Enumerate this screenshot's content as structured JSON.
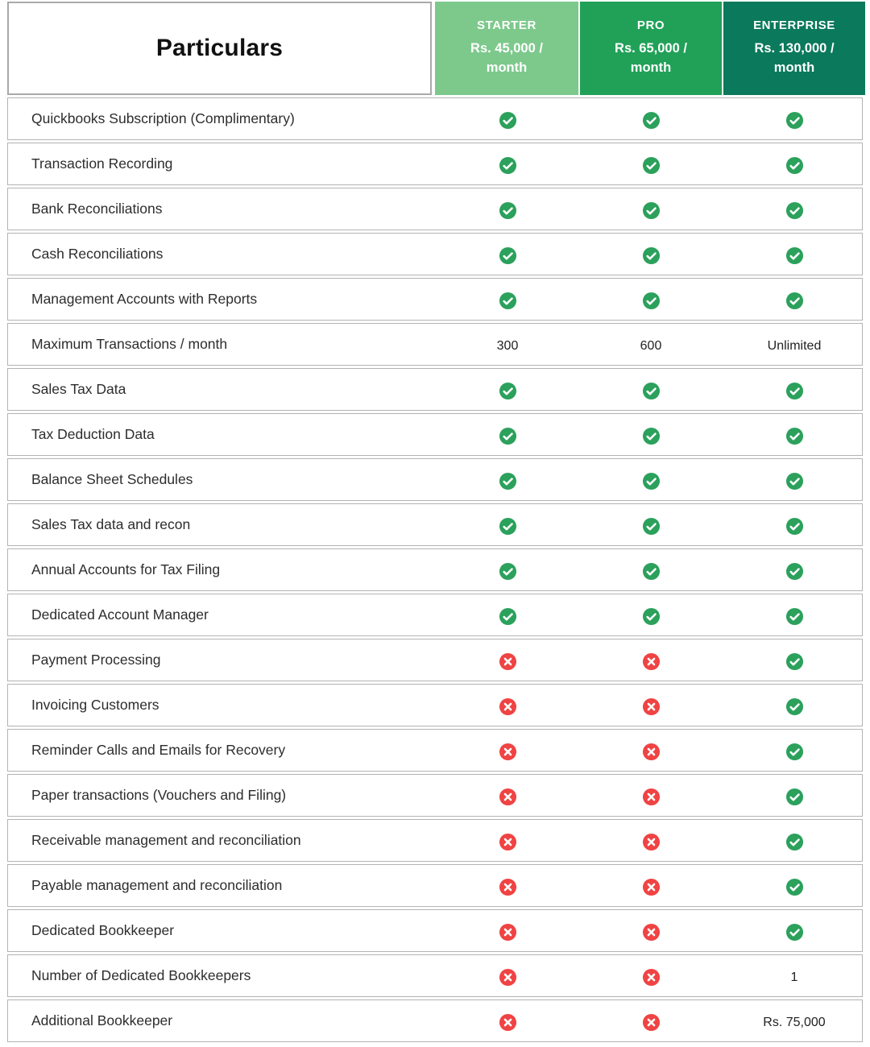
{
  "header": {
    "particulars_label": "Particulars",
    "plans": [
      {
        "id": "starter",
        "name": "STARTER",
        "price": "Rs. 45,000 / month",
        "color": "#7dc98c"
      },
      {
        "id": "pro",
        "name": "PRO",
        "price": "Rs. 65,000 / month",
        "color": "#21a158"
      },
      {
        "id": "enterprise",
        "name": "ENTERPRISE",
        "price": "Rs. 130,000 / month",
        "color": "#0b795c"
      }
    ]
  },
  "icons": {
    "check_color": "#2ba15c",
    "cross_color": "#f04343"
  },
  "table": {
    "rows": [
      {
        "label": "Quickbooks Subscription (Complimentary)",
        "values": [
          "check",
          "check",
          "check"
        ]
      },
      {
        "label": "Transaction Recording",
        "values": [
          "check",
          "check",
          "check"
        ]
      },
      {
        "label": "Bank Reconciliations",
        "values": [
          "check",
          "check",
          "check"
        ]
      },
      {
        "label": "Cash Reconciliations",
        "values": [
          "check",
          "check",
          "check"
        ]
      },
      {
        "label": "Management Accounts with Reports",
        "values": [
          "check",
          "check",
          "check"
        ]
      },
      {
        "label": "Maximum Transactions / month",
        "values": [
          "300",
          "600",
          "Unlimited"
        ]
      },
      {
        "label": "Sales Tax Data",
        "values": [
          "check",
          "check",
          "check"
        ]
      },
      {
        "label": "Tax Deduction Data",
        "values": [
          "check",
          "check",
          "check"
        ]
      },
      {
        "label": "Balance Sheet Schedules",
        "values": [
          "check",
          "check",
          "check"
        ]
      },
      {
        "label": "Sales Tax data and recon",
        "values": [
          "check",
          "check",
          "check"
        ]
      },
      {
        "label": "Annual Accounts for Tax Filing",
        "values": [
          "check",
          "check",
          "check"
        ]
      },
      {
        "label": "Dedicated Account Manager",
        "values": [
          "check",
          "check",
          "check"
        ]
      },
      {
        "label": "Payment Processing",
        "values": [
          "cross",
          "cross",
          "check"
        ]
      },
      {
        "label": "Invoicing Customers",
        "values": [
          "cross",
          "cross",
          "check"
        ]
      },
      {
        "label": "Reminder Calls and Emails for Recovery",
        "values": [
          "cross",
          "cross",
          "check"
        ]
      },
      {
        "label": "Paper transactions (Vouchers and Filing)",
        "values": [
          "cross",
          "cross",
          "check"
        ]
      },
      {
        "label": "Receivable management and reconciliation",
        "values": [
          "cross",
          "cross",
          "check"
        ]
      },
      {
        "label": "Payable management and reconciliation",
        "values": [
          "cross",
          "cross",
          "check"
        ]
      },
      {
        "label": "Dedicated Bookkeeper",
        "values": [
          "cross",
          "cross",
          "check"
        ]
      },
      {
        "label": "Number of Dedicated Bookkeepers",
        "values": [
          "cross",
          "cross",
          "1"
        ]
      },
      {
        "label": "Additional Bookkeeper",
        "values": [
          "cross",
          "cross",
          "Rs. 75,000"
        ]
      }
    ]
  }
}
